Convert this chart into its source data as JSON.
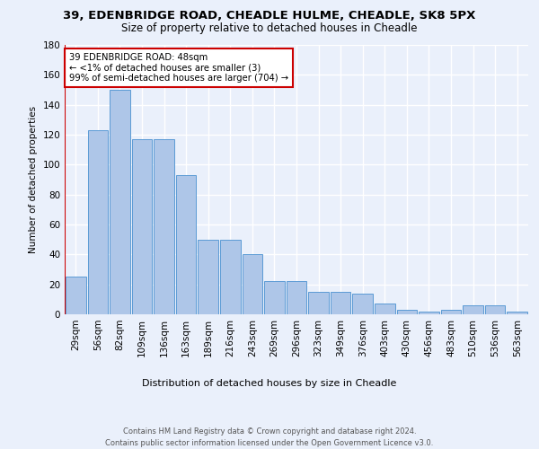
{
  "title1": "39, EDENBRIDGE ROAD, CHEADLE HULME, CHEADLE, SK8 5PX",
  "title2": "Size of property relative to detached houses in Cheadle",
  "xlabel": "Distribution of detached houses by size in Cheadle",
  "ylabel": "Number of detached properties",
  "categories": [
    "29sqm",
    "56sqm",
    "82sqm",
    "109sqm",
    "136sqm",
    "163sqm",
    "189sqm",
    "216sqm",
    "243sqm",
    "269sqm",
    "296sqm",
    "323sqm",
    "349sqm",
    "376sqm",
    "403sqm",
    "430sqm",
    "456sqm",
    "483sqm",
    "510sqm",
    "536sqm",
    "563sqm"
  ],
  "values": [
    25,
    123,
    150,
    117,
    117,
    93,
    50,
    50,
    40,
    22,
    22,
    15,
    15,
    14,
    7,
    3,
    2,
    3,
    6,
    6,
    2
  ],
  "bar_color": "#aec6e8",
  "bar_edge_color": "#5b9bd5",
  "vline_color": "#cc0000",
  "annotation_text": "39 EDENBRIDGE ROAD: 48sqm\n← <1% of detached houses are smaller (3)\n99% of semi-detached houses are larger (704) →",
  "annotation_box_color": "#ffffff",
  "annotation_box_edge": "#cc0000",
  "footnote_full": "Contains HM Land Registry data © Crown copyright and database right 2024.\nContains public sector information licensed under the Open Government Licence v3.0.",
  "ylim": [
    0,
    180
  ],
  "background_color": "#eaf0fb",
  "grid_color": "#ffffff"
}
